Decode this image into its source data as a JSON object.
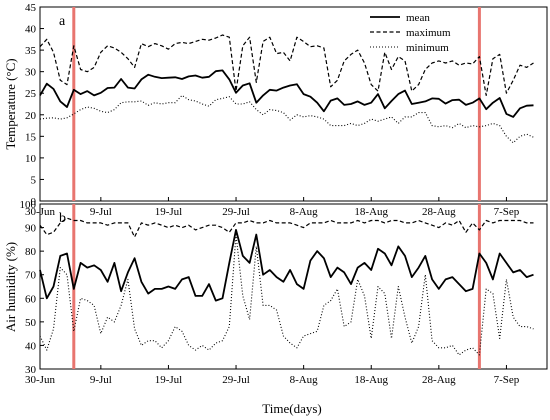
{
  "chart_data": [
    {
      "type": "line",
      "panel_label": "a",
      "ylabel": "Temperature (°C)",
      "xlabel": "",
      "ylim": [
        0,
        45
      ],
      "yticks": [
        0,
        5,
        10,
        15,
        20,
        25,
        30,
        35,
        40,
        45
      ],
      "xlim": [
        0,
        75
      ],
      "xticks": [
        {
          "day": 0,
          "label": "30-Jun"
        },
        {
          "day": 9,
          "label": "9-Jul"
        },
        {
          "day": 19,
          "label": "19-Jul"
        },
        {
          "day": 29,
          "label": "29-Jul"
        },
        {
          "day": 39,
          "label": "8-Aug"
        },
        {
          "day": 49,
          "label": "18-Aug"
        },
        {
          "day": 59,
          "label": "28-Aug"
        },
        {
          "day": 69,
          "label": "7-Sep"
        }
      ],
      "markers": [
        5,
        65
      ],
      "marker_color": "#e8756f",
      "grid": false,
      "legend_position": "top-right",
      "x": [
        0,
        1,
        2,
        3,
        4,
        5,
        6,
        7,
        8,
        9,
        10,
        11,
        12,
        13,
        14,
        15,
        16,
        17,
        18,
        19,
        20,
        21,
        22,
        23,
        24,
        25,
        26,
        27,
        28,
        29,
        30,
        31,
        32,
        33,
        34,
        35,
        36,
        37,
        38,
        39,
        40,
        41,
        42,
        43,
        44,
        45,
        46,
        47,
        48,
        49,
        50,
        51,
        52,
        53,
        54,
        55,
        56,
        57,
        58,
        59,
        60,
        61,
        62,
        63,
        64,
        65,
        66,
        67,
        68,
        69,
        70,
        71,
        72,
        73
      ],
      "series": [
        {
          "name": "mean",
          "style": "solid",
          "values": [
            24.5,
            27.2,
            26,
            23.1,
            21.8,
            25.8,
            24.8,
            25.5,
            24.5,
            25.1,
            26.2,
            26.3,
            28.3,
            26.3,
            26.1,
            28.2,
            29.3,
            28.8,
            28.5,
            28.6,
            28.7,
            28.3,
            28.9,
            29.1,
            28.6,
            28.8,
            30.1,
            30.3,
            28.2,
            25.1,
            26.8,
            27.3,
            22.8,
            24.5,
            25.8,
            25.6,
            26.3,
            26.8,
            27.1,
            24.8,
            24.2,
            22.8,
            20.8,
            23.3,
            23.8,
            22.3,
            22.5,
            23.1,
            22.3,
            22.8,
            24.8,
            21.5,
            23.2,
            24.8,
            25.6,
            22.5,
            22.8,
            23.1,
            23.8,
            23.7,
            22.6,
            23.4,
            23.5,
            22.3,
            22.8,
            23.8,
            21.3,
            22.8,
            23.9,
            20.2,
            19.5,
            21.5,
            22.1,
            22.2
          ]
        },
        {
          "name": "maximum",
          "style": "dashed",
          "values": [
            35.8,
            37.5,
            34.5,
            28,
            27,
            36,
            30.5,
            30,
            31,
            34.5,
            36,
            35.5,
            34.5,
            33,
            31,
            36.5,
            35.8,
            36.5,
            36,
            35.2,
            36.5,
            36.8,
            36.5,
            37,
            37.5,
            37.3,
            37.8,
            38.5,
            38,
            25.5,
            36,
            38,
            27.5,
            37,
            38,
            34.2,
            34.5,
            32.5,
            38,
            37,
            35.8,
            36,
            35.5,
            26.5,
            28,
            32.5,
            34,
            35,
            32,
            27,
            25.5,
            34.5,
            30.5,
            33.5,
            32.5,
            25.5,
            27,
            30.5,
            32,
            32.5,
            32,
            32.5,
            31.5,
            32,
            31.8,
            33.5,
            24.5,
            33,
            34,
            25,
            28,
            31.5,
            31,
            32
          ]
        },
        {
          "name": "minimum",
          "style": "dotted",
          "values": [
            19,
            19.2,
            19.3,
            19,
            19.3,
            20.2,
            21.2,
            21.8,
            21.5,
            20.8,
            20.5,
            21.2,
            22.8,
            23,
            23,
            23.2,
            22.2,
            22.8,
            22.5,
            22.8,
            22.8,
            24.5,
            23.5,
            23.2,
            22.5,
            22,
            23.5,
            23.8,
            24.2,
            22.5,
            22.5,
            23,
            21.2,
            20,
            21.2,
            21,
            20.5,
            18.8,
            20,
            19.5,
            19.8,
            19.5,
            19,
            17.5,
            17.5,
            17.5,
            18,
            17.5,
            18,
            19,
            18.5,
            19,
            19.5,
            18,
            19.5,
            19.5,
            20.5,
            20.5,
            17.5,
            17.2,
            17.5,
            17,
            18,
            17,
            17.5,
            17.2,
            17.5,
            18,
            17.5,
            15,
            13.5,
            15,
            15.5,
            14.8
          ]
        }
      ]
    },
    {
      "type": "line",
      "panel_label": "b",
      "ylabel": "Air humidity (%)",
      "xlabel": "Time(days)",
      "ylim": [
        30,
        100
      ],
      "yticks": [
        30,
        40,
        50,
        60,
        70,
        80,
        90,
        100
      ],
      "xlim": [
        0,
        75
      ],
      "xticks": [
        {
          "day": 0,
          "label": "30-Jun"
        },
        {
          "day": 9,
          "label": "9-Jul"
        },
        {
          "day": 19,
          "label": "19-Jul"
        },
        {
          "day": 29,
          "label": "29-Jul"
        },
        {
          "day": 39,
          "label": "8-Aug"
        },
        {
          "day": 49,
          "label": "18-Aug"
        },
        {
          "day": 59,
          "label": "28-Aug"
        },
        {
          "day": 69,
          "label": "7-Sep"
        }
      ],
      "markers": [
        5,
        65
      ],
      "marker_color": "#e8756f",
      "grid": false,
      "x": [
        0,
        1,
        2,
        3,
        4,
        5,
        6,
        7,
        8,
        9,
        10,
        11,
        12,
        13,
        14,
        15,
        16,
        17,
        18,
        19,
        20,
        21,
        22,
        23,
        24,
        25,
        26,
        27,
        28,
        29,
        30,
        31,
        32,
        33,
        34,
        35,
        36,
        37,
        38,
        39,
        40,
        41,
        42,
        43,
        44,
        45,
        46,
        47,
        48,
        49,
        50,
        51,
        52,
        53,
        54,
        55,
        56,
        57,
        58,
        59,
        60,
        61,
        62,
        63,
        64,
        65,
        66,
        67,
        68,
        69,
        70,
        71,
        72,
        73
      ],
      "series": [
        {
          "name": "mean",
          "style": "solid",
          "values": [
            72,
            60,
            65,
            78,
            79,
            64,
            75,
            73,
            74,
            72,
            67,
            75,
            63,
            71,
            77,
            67,
            62,
            64,
            64,
            65,
            64,
            68,
            69,
            61,
            61,
            66,
            59,
            60,
            75,
            89,
            78,
            75,
            87,
            70,
            72,
            69,
            67,
            72,
            66,
            64,
            76,
            80,
            77,
            69,
            73,
            71,
            66,
            73,
            75,
            72,
            81,
            79,
            74,
            82,
            78,
            69,
            73,
            78,
            68,
            64,
            68,
            69,
            66,
            63,
            64,
            79,
            75,
            68,
            79,
            75,
            71,
            72,
            69,
            70
          ]
        },
        {
          "name": "maximum",
          "style": "dashed",
          "values": [
            91,
            87,
            88,
            92,
            94,
            93,
            93,
            92,
            92,
            92,
            91,
            92,
            92,
            92,
            86,
            92,
            91,
            92,
            91,
            90,
            91,
            90,
            91,
            89,
            90,
            91,
            91,
            90,
            88,
            92,
            92,
            93,
            92,
            92,
            93,
            92,
            92,
            92,
            91,
            90,
            92,
            92,
            92,
            93,
            92,
            92,
            92,
            93,
            92,
            93,
            93,
            92,
            93,
            93,
            92,
            92,
            93,
            92,
            91,
            90,
            92,
            91,
            93,
            88,
            92,
            89,
            93,
            92,
            93,
            93,
            93,
            93,
            92,
            92
          ]
        },
        {
          "name": "minimum",
          "style": "dotted",
          "values": [
            44,
            38,
            47,
            73,
            70,
            46,
            60,
            59,
            57,
            45,
            52,
            50,
            57,
            68,
            47,
            40,
            42,
            42,
            39,
            42,
            48,
            46,
            40,
            38,
            40,
            38,
            41,
            42,
            48,
            87,
            61,
            51,
            82,
            57,
            57,
            55,
            44,
            41,
            39,
            44,
            45,
            46,
            57,
            59,
            64,
            48,
            50,
            68,
            61,
            43,
            65,
            62,
            43,
            65,
            52,
            41,
            48,
            70,
            42,
            39,
            39,
            40,
            36,
            38,
            39,
            36,
            64,
            62,
            43,
            68,
            52,
            48,
            48,
            47
          ]
        }
      ]
    }
  ]
}
